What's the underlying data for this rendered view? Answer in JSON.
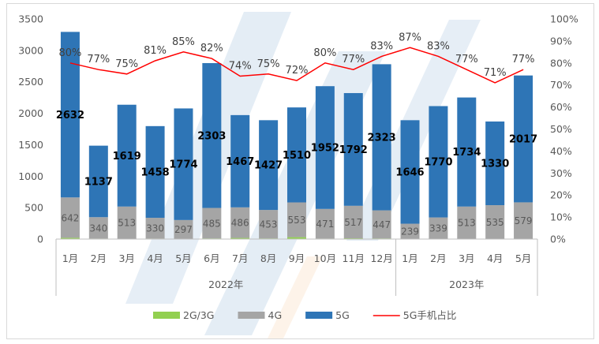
{
  "chart_data": {
    "type": "bar",
    "stacked": true,
    "categories": [
      "1月",
      "2月",
      "3月",
      "4月",
      "5月",
      "6月",
      "7月",
      "8月",
      "9月",
      "10月",
      "11月",
      "12月",
      "1月",
      "2月",
      "3月",
      "4月",
      "5月"
    ],
    "year_groups": [
      {
        "label": "2022年",
        "count": 12
      },
      {
        "label": "2023年",
        "count": 5
      }
    ],
    "series": [
      {
        "name": "2G/3G",
        "color": "#92d050",
        "values": [
          20,
          8,
          4,
          8,
          6,
          10,
          18,
          10,
          30,
          8,
          12,
          10,
          5,
          5,
          4,
          4,
          5
        ]
      },
      {
        "name": "4G",
        "color": "#a5a5a5",
        "values": [
          642,
          340,
          513,
          330,
          297,
          485,
          486,
          453,
          553,
          471,
          517,
          447,
          239,
          339,
          513,
          535,
          579
        ]
      },
      {
        "name": "5G",
        "color": "#2e75b6",
        "values": [
          2632,
          1137,
          1619,
          1458,
          1774,
          2303,
          1467,
          1427,
          1510,
          1952,
          1792,
          2323,
          1646,
          1770,
          1734,
          1330,
          2017
        ]
      }
    ],
    "line_series": {
      "name": "5G手机占比",
      "color": "#ff0000",
      "values": [
        80,
        77,
        75,
        81,
        85,
        82,
        74,
        75,
        72,
        80,
        77,
        83,
        87,
        83,
        77,
        71,
        77
      ],
      "labels": [
        "80%",
        "77%",
        "75%",
        "81%",
        "85%",
        "82%",
        "74%",
        "75%",
        "72%",
        "80%",
        "77%",
        "83%",
        "87%",
        "83%",
        "77%",
        "71%",
        "77%"
      ]
    },
    "y_left": {
      "min": 0,
      "max": 3500,
      "ticks": [
        "0",
        "500",
        "1000",
        "1500",
        "2000",
        "2500",
        "3000",
        "3500"
      ]
    },
    "y_right": {
      "min": 0,
      "max": 100,
      "ticks": [
        "0%",
        "10%",
        "20%",
        "30%",
        "40%",
        "50%",
        "60%",
        "70%",
        "80%",
        "90%",
        "100%"
      ]
    },
    "legend_position": "bottom",
    "grid": false
  }
}
